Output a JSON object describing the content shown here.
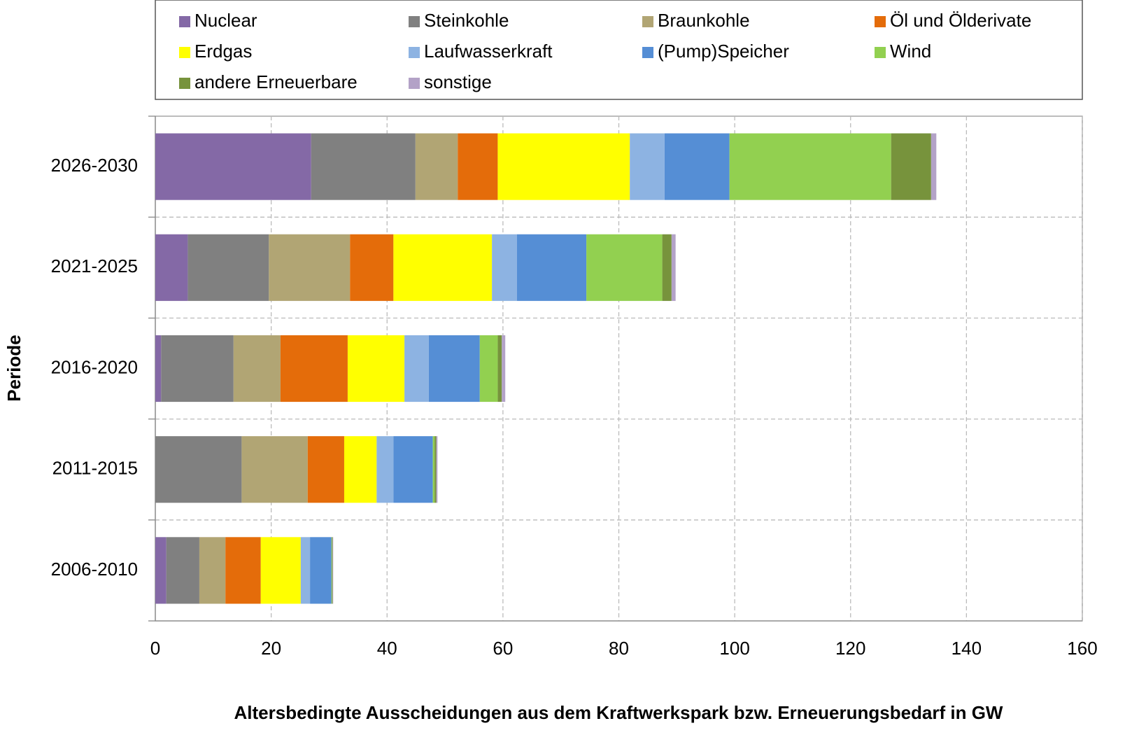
{
  "chart_data": {
    "type": "stacked-bar-horizontal",
    "x_label": "Altersbedingte Ausscheidungen aus dem Kraftwerkspark bzw. Erneuerungsbedarf in GW",
    "y_label": "Periode",
    "categories": [
      "2026-2030",
      "2021-2025",
      "2016-2020",
      "2011-2015",
      "2006-2010"
    ],
    "series": [
      {
        "name": "Nuclear",
        "color": "#8469a6",
        "values": [
          26.9,
          5.6,
          1.0,
          0,
          1.9
        ]
      },
      {
        "name": "Steinkohle",
        "color": "#808080",
        "values": [
          18.0,
          14.0,
          12.5,
          14.9,
          5.7
        ]
      },
      {
        "name": "Braunkohle",
        "color": "#b1a574",
        "values": [
          7.3,
          14.0,
          8.1,
          11.4,
          4.5
        ]
      },
      {
        "name": "Öl und Ölderivate",
        "color": "#e46c0a",
        "values": [
          6.9,
          7.5,
          11.6,
          6.3,
          6.1
        ]
      },
      {
        "name": "Erdgas",
        "color": "#ffff00",
        "values": [
          22.8,
          17.0,
          9.8,
          5.6,
          6.9
        ]
      },
      {
        "name": "Laufwasserkraft",
        "color": "#8db3e2",
        "values": [
          6.0,
          4.3,
          4.2,
          2.9,
          1.6
        ]
      },
      {
        "name": "(Pump)Speicher",
        "color": "#558ed5",
        "values": [
          11.2,
          12.0,
          8.8,
          6.8,
          3.7
        ]
      },
      {
        "name": "Wind",
        "color": "#92d050",
        "values": [
          27.9,
          13.1,
          3.1,
          0.3,
          0.1
        ]
      },
      {
        "name": "andere Erneuerbare",
        "color": "#77933c",
        "values": [
          6.9,
          1.6,
          0.7,
          0.3,
          0.1
        ]
      },
      {
        "name": "sonstige",
        "color": "#b3a2c7",
        "values": [
          0.9,
          0.7,
          0.6,
          0.2,
          0.1
        ]
      }
    ],
    "xlim": [
      0,
      160
    ],
    "xticks": [
      0,
      20,
      40,
      60,
      80,
      100,
      120,
      140,
      160
    ],
    "grid": true
  }
}
